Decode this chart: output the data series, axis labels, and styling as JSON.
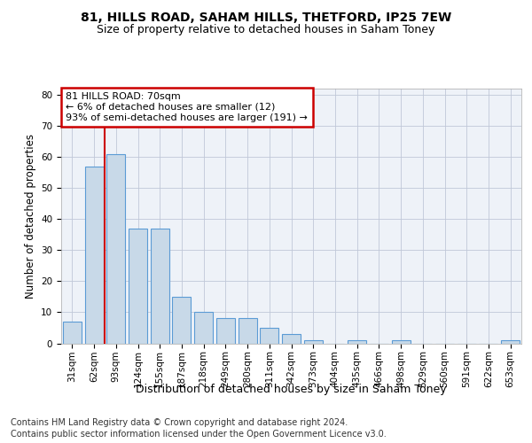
{
  "title_line1": "81, HILLS ROAD, SAHAM HILLS, THETFORD, IP25 7EW",
  "title_line2": "Size of property relative to detached houses in Saham Toney",
  "xlabel": "Distribution of detached houses by size in Saham Toney",
  "ylabel": "Number of detached properties",
  "categories": [
    "31sqm",
    "62sqm",
    "93sqm",
    "124sqm",
    "155sqm",
    "187sqm",
    "218sqm",
    "249sqm",
    "280sqm",
    "311sqm",
    "342sqm",
    "373sqm",
    "404sqm",
    "435sqm",
    "466sqm",
    "498sqm",
    "529sqm",
    "560sqm",
    "591sqm",
    "622sqm",
    "653sqm"
  ],
  "values": [
    7,
    57,
    61,
    37,
    37,
    15,
    10,
    8,
    8,
    5,
    3,
    1,
    0,
    1,
    0,
    1,
    0,
    0,
    0,
    0,
    1
  ],
  "bar_color": "#c8d9e8",
  "bar_edge_color": "#5b9bd5",
  "grid_color": "#c0c8d8",
  "background_color": "#eef2f8",
  "annotation_line1": "81 HILLS ROAD: 70sqm",
  "annotation_line2": "← 6% of detached houses are smaller (12)",
  "annotation_line3": "93% of semi-detached houses are larger (191) →",
  "annotation_box_color": "#ffffff",
  "annotation_box_edge_color": "#cc0000",
  "vline_x": 1.5,
  "vline_color": "#cc0000",
  "ylim": [
    0,
    82
  ],
  "yticks": [
    0,
    10,
    20,
    30,
    40,
    50,
    60,
    70,
    80
  ],
  "footer_line1": "Contains HM Land Registry data © Crown copyright and database right 2024.",
  "footer_line2": "Contains public sector information licensed under the Open Government Licence v3.0.",
  "title_fontsize": 10,
  "subtitle_fontsize": 9,
  "xlabel_fontsize": 9,
  "ylabel_fontsize": 8.5,
  "tick_fontsize": 7.5,
  "annotation_fontsize": 8,
  "footer_fontsize": 7
}
